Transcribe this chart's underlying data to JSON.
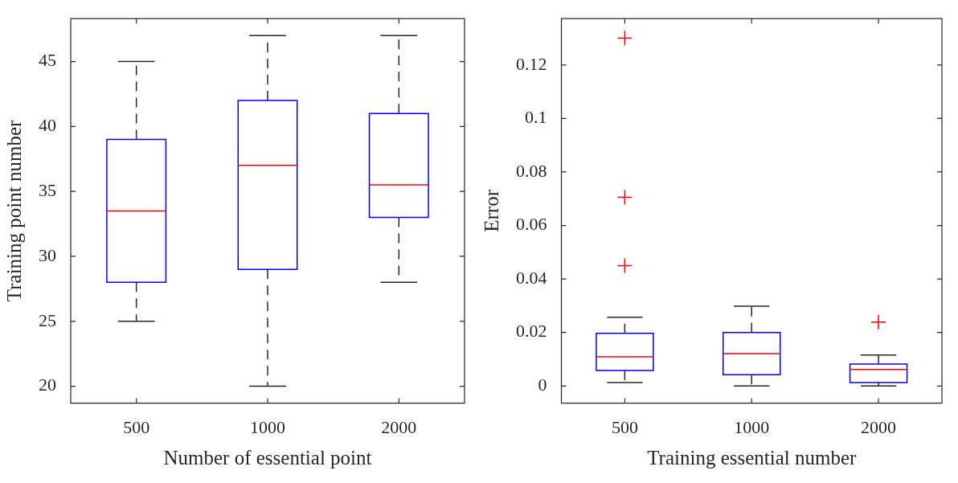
{
  "chart_data": [
    {
      "type": "box",
      "categories": [
        "500",
        "1000",
        "2000"
      ],
      "xlabel": "Number of essential point",
      "ylabel": "Training point number",
      "ylim": [
        18.7,
        48.3
      ],
      "yticks": [
        20,
        25,
        30,
        35,
        40,
        45
      ],
      "color": "#0000ff",
      "boxes": [
        {
          "low": 25,
          "q1": 28,
          "median": 33.5,
          "q3": 39,
          "high": 45
        },
        {
          "low": 20,
          "q1": 29,
          "median": 37,
          "q3": 42,
          "high": 47
        },
        {
          "low": 28,
          "q1": 33,
          "median": 35.5,
          "q3": 41,
          "high": 47
        }
      ]
    },
    {
      "type": "box",
      "categories": [
        "500",
        "1000",
        "2000"
      ],
      "xlabel": "Training essential number",
      "ylabel": "Error",
      "ylim": [
        -0.0064,
        0.1373
      ],
      "yticks": [
        0,
        0.02,
        0.04,
        0.06,
        0.08,
        0.1,
        0.12
      ],
      "color": "#0000ff",
      "boxes": [
        {
          "low": 0.0013,
          "q1": 0.0058,
          "median": 0.0109,
          "q3": 0.0197,
          "high": 0.0257,
          "outliers": [
            0.045,
            0.0705,
            0.13
          ]
        },
        {
          "low": 0,
          "q1": 0.0042,
          "median": 0.0121,
          "q3": 0.02,
          "high": 0.0298
        },
        {
          "low": 0,
          "q1": 0.0013,
          "median": 0.0062,
          "q3": 0.0082,
          "high": 0.0116,
          "outliers": [
            0.0239
          ]
        }
      ]
    }
  ]
}
